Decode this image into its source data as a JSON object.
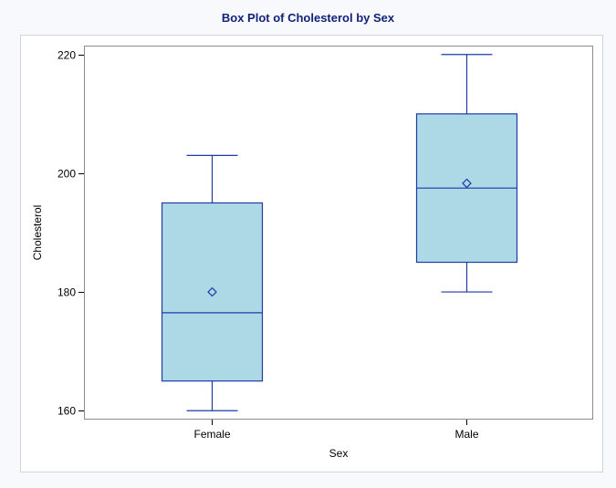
{
  "colors": {
    "page_bg": "#f8f9fd",
    "frame_bg": "#ffffff",
    "frame_border": "#d0d4dc",
    "plot_border": "#8c8c8c",
    "title": "#112277",
    "box_fill": "#add8e6",
    "box_stroke": "#1f3ba6",
    "text": "#000000"
  },
  "chart_data": {
    "type": "box",
    "title": "Box Plot of Cholesterol by Sex",
    "xlabel": "Sex",
    "ylabel": "Cholesterol",
    "categories": [
      "Female",
      "Male"
    ],
    "ylim": [
      158.5,
      221.5
    ],
    "yticks": [
      160,
      180,
      200,
      220
    ],
    "grid": false,
    "legend": "none",
    "boxes": [
      {
        "category": "Female",
        "min": 160,
        "q1": 165,
        "median": 176.5,
        "q3": 195,
        "max": 203,
        "mean": 180
      },
      {
        "category": "Male",
        "min": 180,
        "q1": 185,
        "median": 197.5,
        "q3": 210,
        "max": 220,
        "mean": 198.3
      }
    ]
  }
}
